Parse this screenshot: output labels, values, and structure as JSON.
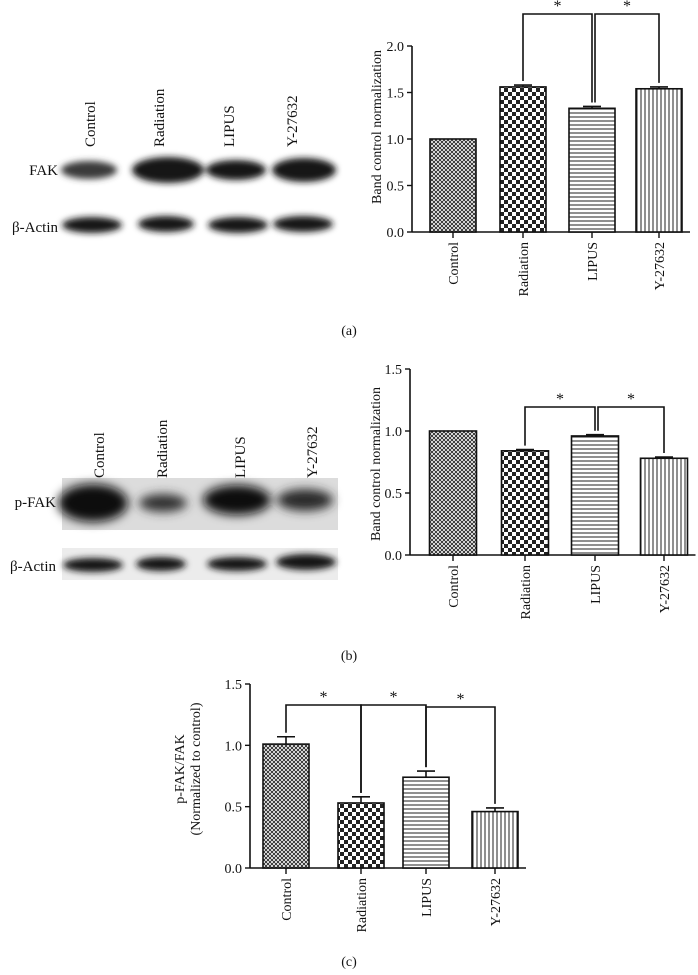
{
  "panels": [
    {
      "id": "a",
      "panel_label": "(a)",
      "blot": {
        "lane_labels": [
          "Control",
          "Radiation",
          "LIPUS",
          "Y-27632"
        ],
        "row_labels": [
          "FAK",
          "β-Actin"
        ]
      }
    },
    {
      "id": "b",
      "panel_label": "(b)",
      "blot": {
        "lane_labels": [
          "Control",
          "Radiation",
          "LIPUS",
          "Y-27632"
        ],
        "row_labels": [
          "p-FAK",
          "β-Actin"
        ]
      }
    },
    {
      "id": "c",
      "panel_label": "(c)"
    }
  ],
  "chart_data": [
    {
      "id": "a",
      "type": "bar",
      "categories": [
        "Control",
        "Radiation",
        "LIPUS",
        "Y-27632"
      ],
      "values": [
        1.0,
        1.56,
        1.33,
        1.54
      ],
      "errors": [
        0.0,
        0.02,
        0.02,
        0.02
      ],
      "ylabel": "Band control normalization",
      "ylim": [
        0,
        2.0
      ],
      "yticks": [
        "0.0",
        "0.5",
        "1.0",
        "1.5",
        "2.0"
      ],
      "significance": [
        {
          "from": "Radiation",
          "to": "LIPUS",
          "label": "*"
        },
        {
          "from": "LIPUS",
          "to": "Y-27632",
          "label": "*"
        }
      ],
      "patterns": [
        "crosshatch",
        "checker",
        "horizontal",
        "vertical"
      ]
    },
    {
      "id": "b",
      "type": "bar",
      "categories": [
        "Control",
        "Radiation",
        "LIPUS",
        "Y-27632"
      ],
      "values": [
        1.0,
        0.84,
        0.96,
        0.78
      ],
      "errors": [
        0.0,
        0.01,
        0.01,
        0.01
      ],
      "ylabel": "Band control normalization",
      "ylim": [
        0,
        1.5
      ],
      "yticks": [
        "0.0",
        "0.5",
        "1.0",
        "1.5"
      ],
      "significance": [
        {
          "from": "Radiation",
          "to": "LIPUS",
          "label": "*"
        },
        {
          "from": "LIPUS",
          "to": "Y-27632",
          "label": "*"
        }
      ],
      "patterns": [
        "crosshatch",
        "checker",
        "horizontal",
        "vertical"
      ]
    },
    {
      "id": "c",
      "type": "bar",
      "categories": [
        "Control",
        "Radiation",
        "LIPUS",
        "Y-27632"
      ],
      "values": [
        1.01,
        0.53,
        0.74,
        0.46
      ],
      "errors": [
        0.06,
        0.05,
        0.05,
        0.03
      ],
      "ylabel_lines": [
        "p-FAK/FAK",
        "(Normalized to control)"
      ],
      "ylim": [
        0,
        1.5
      ],
      "yticks": [
        "0.0",
        "0.5",
        "1.0",
        "1.5"
      ],
      "significance": [
        {
          "from": "Control",
          "to": "Radiation",
          "label": "*"
        },
        {
          "from": "Radiation",
          "to": "LIPUS",
          "label": "*"
        },
        {
          "from": "LIPUS",
          "to": "Y-27632",
          "label": "*"
        }
      ],
      "patterns": [
        "crosshatch",
        "checker",
        "horizontal",
        "vertical"
      ]
    }
  ]
}
